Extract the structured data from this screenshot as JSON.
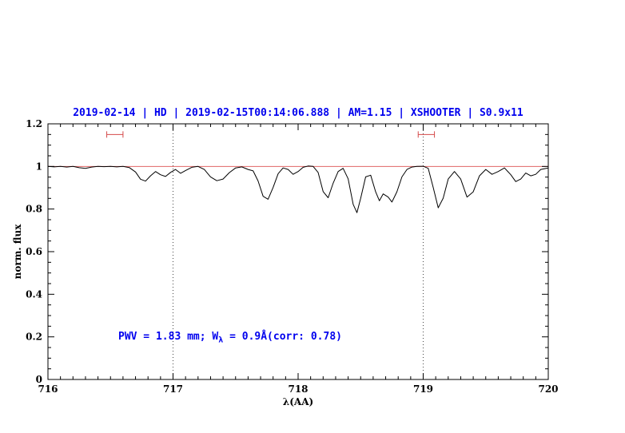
{
  "title": "2019-02-14 | HD | 2019-02-15T00:14:06.888 | AM=1.15 | XSHOOTER | S0.9x11",
  "colors": {
    "title": "#0000ee",
    "annotation": "#0000ee",
    "spectrum": "#000000",
    "continuum": "#e06666",
    "marker": "#d44a4a",
    "vline": "#444444",
    "axis": "#000000"
  },
  "annotation": {
    "prefix": "PWV = 1.83 mm; W",
    "sub": "λ",
    "suffix": " = 0.9Å(corr: 0.78)"
  },
  "chart_data": {
    "type": "line",
    "title": "2019-02-14 | HD | 2019-02-15T00:14:06.888 | AM=1.15 | XSHOOTER | S0.9x11",
    "xlabel": "λ(AA)",
    "ylabel": "norm. flux",
    "xlim": [
      716,
      720
    ],
    "ylim": [
      0,
      1.2
    ],
    "xticks": [
      716,
      717,
      718,
      719,
      720
    ],
    "yticks": [
      0,
      0.2,
      0.4,
      0.6,
      0.8,
      1,
      1.2
    ],
    "x_minor_step": 0.1,
    "y_minor_step": 0.05,
    "grid": "off",
    "legend": "none",
    "vlines": [
      717,
      719
    ],
    "continuum_y": 1.0,
    "pwv_markers": [
      {
        "x1": 716.47,
        "x2": 716.6,
        "y": 1.15
      },
      {
        "x1": 718.96,
        "x2": 719.09,
        "y": 1.15
      }
    ],
    "annotation_text": "PWV = 1.83 mm; Wλ = 0.9Å(corr: 0.78)",
    "series": [
      {
        "name": "telluric-spectrum",
        "x": [
          716.0,
          716.05,
          716.1,
          716.15,
          716.2,
          716.25,
          716.3,
          716.35,
          716.4,
          716.45,
          716.5,
          716.55,
          716.6,
          716.65,
          716.7,
          716.74,
          716.78,
          716.82,
          716.86,
          716.9,
          716.94,
          716.98,
          717.02,
          717.06,
          717.1,
          717.15,
          717.2,
          717.25,
          717.3,
          717.35,
          717.4,
          717.45,
          717.5,
          717.55,
          717.6,
          717.64,
          717.68,
          717.72,
          717.76,
          717.8,
          717.84,
          717.88,
          717.92,
          717.96,
          718.0,
          718.04,
          718.08,
          718.12,
          718.16,
          718.2,
          718.24,
          718.28,
          718.32,
          718.36,
          718.4,
          718.44,
          718.47,
          718.5,
          718.54,
          718.58,
          718.62,
          718.65,
          718.68,
          718.72,
          718.75,
          718.79,
          718.83,
          718.87,
          718.91,
          718.95,
          719.0,
          719.04,
          719.08,
          719.12,
          719.16,
          719.2,
          719.25,
          719.3,
          719.35,
          719.4,
          719.45,
          719.5,
          719.55,
          719.6,
          719.65,
          719.7,
          719.74,
          719.78,
          719.82,
          719.86,
          719.9,
          719.94,
          720.0
        ],
        "y": [
          1.0,
          0.998,
          1.0,
          0.997,
          1.0,
          0.994,
          0.991,
          0.997,
          1.0,
          0.999,
          1.0,
          0.998,
          1.0,
          0.995,
          0.974,
          0.94,
          0.931,
          0.956,
          0.976,
          0.961,
          0.953,
          0.972,
          0.986,
          0.968,
          0.981,
          0.996,
          1.0,
          0.986,
          0.951,
          0.933,
          0.941,
          0.971,
          0.993,
          0.998,
          0.986,
          0.979,
          0.932,
          0.86,
          0.846,
          0.901,
          0.966,
          0.993,
          0.986,
          0.963,
          0.976,
          0.996,
          1.002,
          1.0,
          0.972,
          0.882,
          0.853,
          0.921,
          0.976,
          0.991,
          0.942,
          0.822,
          0.783,
          0.851,
          0.951,
          0.959,
          0.881,
          0.839,
          0.871,
          0.856,
          0.833,
          0.881,
          0.951,
          0.986,
          0.997,
          1.0,
          1.001,
          0.991,
          0.902,
          0.806,
          0.851,
          0.941,
          0.976,
          0.941,
          0.856,
          0.881,
          0.956,
          0.986,
          0.963,
          0.976,
          0.993,
          0.961,
          0.929,
          0.941,
          0.969,
          0.956,
          0.963,
          0.986,
          0.993
        ]
      }
    ]
  }
}
